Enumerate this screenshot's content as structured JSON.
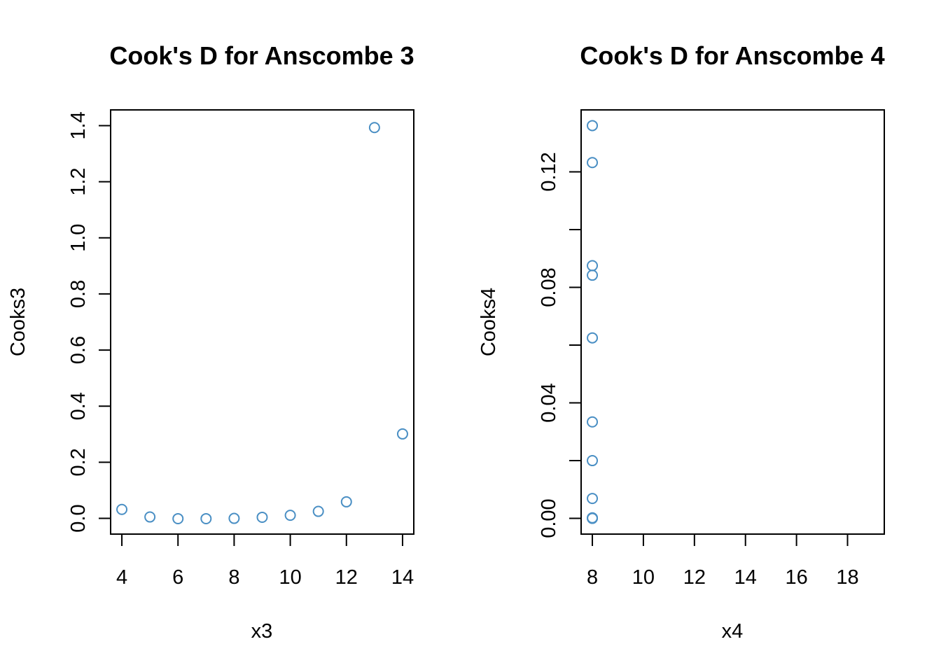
{
  "chart_data": [
    {
      "type": "scatter",
      "title": "Cook's D for Anscombe 3",
      "xlabel": "x3",
      "ylabel": "Cooks3",
      "xlim": [
        3.6,
        14.4
      ],
      "ylim": [
        -0.056,
        1.456
      ],
      "xticks": [
        4,
        6,
        8,
        10,
        12,
        14
      ],
      "xtick_labels": [
        "4",
        "6",
        "8",
        "10",
        "12",
        "14"
      ],
      "yticks": [
        0.0,
        0.2,
        0.4,
        0.6,
        0.8,
        1.0,
        1.2,
        1.4
      ],
      "ytick_labels": [
        "0.0",
        "0.2",
        "0.4",
        "0.6",
        "0.8",
        "1.0",
        "1.2",
        "1.4"
      ],
      "grid": false,
      "marker_color": "#4A8FC4",
      "series": [
        {
          "x": [
            4,
            5,
            6,
            7,
            8,
            9,
            10,
            11,
            12,
            13,
            14
          ],
          "y": [
            0.032,
            0.005,
            -0.001,
            -0.001,
            0.0,
            0.004,
            0.011,
            0.025,
            0.059,
            1.393,
            0.301
          ]
        }
      ]
    },
    {
      "type": "scatter",
      "title": "Cook's D for Anscombe 4",
      "xlabel": "x4",
      "ylabel": "Cooks4",
      "xlim": [
        7.56,
        19.44
      ],
      "ylim": [
        -0.00544,
        0.14144
      ],
      "xticks": [
        8,
        10,
        12,
        14,
        16,
        18
      ],
      "xtick_labels": [
        "8",
        "10",
        "12",
        "14",
        "16",
        "18"
      ],
      "yticks": [
        0.0,
        0.02,
        0.04,
        0.06,
        0.08,
        0.1,
        0.12
      ],
      "ytick_labels": [
        "0.00",
        "",
        "0.04",
        "",
        "0.08",
        "",
        "0.12"
      ],
      "grid": false,
      "marker_color": "#4A8FC4",
      "series": [
        {
          "x": [
            8,
            8,
            8,
            8,
            8,
            8,
            8,
            8,
            8,
            8,
            8
          ],
          "y": [
            0.136,
            0.1232,
            0.0875,
            0.0842,
            0.0625,
            0.0334,
            0.02,
            0.0069,
            0.0002,
            0.0001,
            0.0
          ]
        }
      ]
    }
  ]
}
